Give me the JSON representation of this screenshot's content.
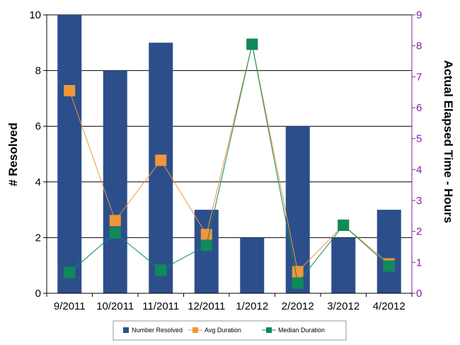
{
  "chart_data": {
    "type": "bar",
    "categories": [
      "9/2011",
      "10/2011",
      "11/2011",
      "12/2011",
      "1/2012",
      "2/2012",
      "3/2012",
      "4/2012"
    ],
    "series": [
      {
        "name": "Number Resolved",
        "type": "bar",
        "axis": "left",
        "color": "#2c4f8b",
        "values": [
          10,
          8,
          9,
          3,
          2,
          6,
          2,
          3
        ]
      },
      {
        "name": "Avg Duration",
        "type": "line",
        "axis": "right",
        "color": "#f0963c",
        "values": [
          6.55,
          2.35,
          4.3,
          1.9,
          8.05,
          0.7,
          2.2,
          0.95
        ]
      },
      {
        "name": "Median Duration",
        "type": "line",
        "axis": "right",
        "color": "#0f8a5a",
        "values": [
          0.67,
          1.95,
          0.75,
          1.55,
          8.05,
          0.33,
          2.2,
          0.88
        ]
      }
    ],
    "ylabel": "# Resolved",
    "y2label": "Actual Elapsed Time - Hours",
    "ylim": [
      0,
      10
    ],
    "yticks": [
      0,
      2,
      4,
      6,
      8,
      10
    ],
    "y2lim": [
      0,
      9
    ],
    "y2ticks": [
      0,
      1,
      2,
      3,
      4,
      5,
      6,
      7,
      8,
      9
    ],
    "grid": true,
    "legend": "bottom",
    "colors": {
      "axis_right": "#8a1aa8",
      "grid": "#000000"
    }
  }
}
